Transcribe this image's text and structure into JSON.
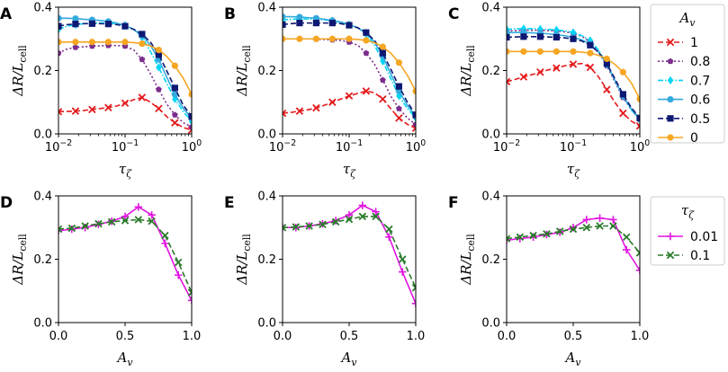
{
  "figure": {
    "panels_row1": [
      "A",
      "B",
      "C"
    ],
    "panels_row2": [
      "D",
      "E",
      "F"
    ]
  },
  "legend_top": {
    "title": "A_v",
    "entries": [
      {
        "label": "1",
        "color": "#e41a1c",
        "marker": "x",
        "dash": "dash"
      },
      {
        "label": "0.8",
        "color": "#7b2d8e",
        "marker": "pentagon",
        "dash": "dot"
      },
      {
        "label": "0.7",
        "color": "#00d5f5",
        "marker": "diamond",
        "dash": "dashdot"
      },
      {
        "label": "0.6",
        "color": "#33aadd",
        "marker": "circle",
        "dash": "solid"
      },
      {
        "label": "0.5",
        "color": "#0d1873",
        "marker": "square",
        "dash": "dash"
      },
      {
        "label": "0",
        "color": "#f5a623",
        "marker": "circle",
        "dash": "solid"
      }
    ]
  },
  "legend_bottom": {
    "title": "τ_ζ",
    "entries": [
      {
        "label": "0.01",
        "color": "#e016e0",
        "marker": "plus",
        "dash": "solid"
      },
      {
        "label": "0.1",
        "color": "#2a7a2a",
        "marker": "x",
        "dash": "dash"
      }
    ]
  },
  "chart_data": [
    {
      "panel": "A",
      "type": "line",
      "xscale": "log",
      "xlim": [
        0.01,
        1
      ],
      "ylim": [
        0,
        0.4
      ],
      "xlabel": "τ_ζ",
      "ylabel": "ΔR/L_cell",
      "xticks": [
        "10^-2",
        "10^-1",
        "10^0"
      ],
      "yticks": [
        "0.0",
        "0.2",
        "0.4"
      ],
      "series": [
        {
          "name": "1",
          "x": [
            0.01,
            0.0135,
            0.018,
            0.024,
            0.032,
            0.042,
            0.056,
            0.075,
            0.1,
            0.135,
            0.18,
            0.24,
            0.32,
            0.42,
            0.56,
            0.75,
            1.0
          ],
          "values": [
            0.07,
            0.071,
            0.072,
            0.074,
            0.077,
            0.08,
            0.083,
            0.088,
            0.097,
            0.108,
            0.115,
            0.1,
            0.08,
            0.055,
            0.035,
            0.02,
            0.012
          ]
        },
        {
          "name": "0.8",
          "x": [
            0.01,
            0.0135,
            0.018,
            0.024,
            0.032,
            0.042,
            0.056,
            0.075,
            0.1,
            0.135,
            0.18,
            0.24,
            0.32,
            0.42,
            0.56,
            0.75,
            1.0
          ],
          "values": [
            0.255,
            0.268,
            0.273,
            0.275,
            0.277,
            0.278,
            0.279,
            0.279,
            0.277,
            0.265,
            0.235,
            0.19,
            0.14,
            0.095,
            0.06,
            0.035,
            0.022
          ]
        },
        {
          "name": "0.7",
          "x": [
            0.01,
            0.0135,
            0.018,
            0.024,
            0.032,
            0.042,
            0.056,
            0.075,
            0.1,
            0.135,
            0.18,
            0.24,
            0.32,
            0.42,
            0.56,
            0.75,
            1.0
          ],
          "values": [
            0.33,
            0.34,
            0.345,
            0.348,
            0.35,
            0.35,
            0.35,
            0.348,
            0.343,
            0.33,
            0.305,
            0.26,
            0.21,
            0.16,
            0.11,
            0.07,
            0.04
          ]
        },
        {
          "name": "0.6",
          "x": [
            0.01,
            0.0135,
            0.018,
            0.024,
            0.032,
            0.042,
            0.056,
            0.075,
            0.1,
            0.135,
            0.18,
            0.24,
            0.32,
            0.42,
            0.56,
            0.75,
            1.0
          ],
          "values": [
            0.365,
            0.365,
            0.364,
            0.362,
            0.36,
            0.358,
            0.355,
            0.35,
            0.342,
            0.33,
            0.31,
            0.28,
            0.235,
            0.18,
            0.125,
            0.08,
            0.05
          ]
        },
        {
          "name": "0.5",
          "x": [
            0.01,
            0.0135,
            0.018,
            0.024,
            0.032,
            0.042,
            0.056,
            0.075,
            0.1,
            0.135,
            0.18,
            0.24,
            0.32,
            0.42,
            0.56,
            0.75,
            1.0
          ],
          "values": [
            0.34,
            0.345,
            0.347,
            0.348,
            0.348,
            0.348,
            0.347,
            0.345,
            0.34,
            0.33,
            0.315,
            0.29,
            0.25,
            0.2,
            0.145,
            0.09,
            0.055
          ]
        },
        {
          "name": "0",
          "x": [
            0.01,
            0.0135,
            0.018,
            0.024,
            0.032,
            0.042,
            0.056,
            0.075,
            0.1,
            0.135,
            0.18,
            0.24,
            0.32,
            0.42,
            0.56,
            0.75,
            1.0
          ],
          "values": [
            0.29,
            0.29,
            0.29,
            0.29,
            0.29,
            0.29,
            0.29,
            0.29,
            0.29,
            0.288,
            0.285,
            0.278,
            0.265,
            0.245,
            0.215,
            0.175,
            0.125
          ]
        }
      ]
    },
    {
      "panel": "B",
      "type": "line",
      "xscale": "log",
      "xlim": [
        0.01,
        1
      ],
      "ylim": [
        0,
        0.4
      ],
      "xlabel": "τ_ζ",
      "ylabel": "ΔR/L_cell",
      "xticks": [
        "10^-2",
        "10^-1",
        "10^0"
      ],
      "yticks": [
        "0.0",
        "0.2",
        "0.4"
      ],
      "series": [
        {
          "name": "1",
          "x": [
            0.01,
            0.0135,
            0.018,
            0.024,
            0.032,
            0.042,
            0.056,
            0.075,
            0.1,
            0.135,
            0.18,
            0.24,
            0.32,
            0.42,
            0.56,
            0.75,
            1.0
          ],
          "values": [
            0.065,
            0.068,
            0.072,
            0.076,
            0.082,
            0.09,
            0.1,
            0.11,
            0.12,
            0.128,
            0.135,
            0.13,
            0.11,
            0.08,
            0.05,
            0.03,
            0.018
          ]
        },
        {
          "name": "0.8",
          "x": [
            0.01,
            0.0135,
            0.018,
            0.024,
            0.032,
            0.042,
            0.056,
            0.075,
            0.1,
            0.135,
            0.18,
            0.24,
            0.32,
            0.42,
            0.56,
            0.75,
            1.0
          ],
          "values": [
            0.3,
            0.3,
            0.3,
            0.3,
            0.299,
            0.298,
            0.297,
            0.295,
            0.29,
            0.28,
            0.255,
            0.22,
            0.17,
            0.12,
            0.08,
            0.05,
            0.03
          ]
        },
        {
          "name": "0.7",
          "x": [
            0.01,
            0.0135,
            0.018,
            0.024,
            0.032,
            0.042,
            0.056,
            0.075,
            0.1,
            0.135,
            0.18,
            0.24,
            0.32,
            0.42,
            0.56,
            0.75,
            1.0
          ],
          "values": [
            0.36,
            0.362,
            0.363,
            0.363,
            0.362,
            0.36,
            0.357,
            0.352,
            0.345,
            0.335,
            0.315,
            0.28,
            0.23,
            0.175,
            0.12,
            0.08,
            0.05
          ]
        },
        {
          "name": "0.6",
          "x": [
            0.01,
            0.0135,
            0.018,
            0.024,
            0.032,
            0.042,
            0.056,
            0.075,
            0.1,
            0.135,
            0.18,
            0.24,
            0.32,
            0.42,
            0.56,
            0.75,
            1.0
          ],
          "values": [
            0.37,
            0.37,
            0.369,
            0.367,
            0.365,
            0.362,
            0.358,
            0.353,
            0.345,
            0.335,
            0.318,
            0.29,
            0.245,
            0.19,
            0.135,
            0.09,
            0.055
          ]
        },
        {
          "name": "0.5",
          "x": [
            0.01,
            0.0135,
            0.018,
            0.024,
            0.032,
            0.042,
            0.056,
            0.075,
            0.1,
            0.135,
            0.18,
            0.24,
            0.32,
            0.42,
            0.56,
            0.75,
            1.0
          ],
          "values": [
            0.345,
            0.348,
            0.35,
            0.35,
            0.35,
            0.35,
            0.35,
            0.348,
            0.343,
            0.335,
            0.32,
            0.295,
            0.255,
            0.205,
            0.15,
            0.1,
            0.06
          ]
        },
        {
          "name": "0",
          "x": [
            0.01,
            0.0135,
            0.018,
            0.024,
            0.032,
            0.042,
            0.056,
            0.075,
            0.1,
            0.135,
            0.18,
            0.24,
            0.32,
            0.42,
            0.56,
            0.75,
            1.0
          ],
          "values": [
            0.3,
            0.3,
            0.3,
            0.3,
            0.3,
            0.3,
            0.3,
            0.3,
            0.3,
            0.298,
            0.295,
            0.288,
            0.275,
            0.255,
            0.225,
            0.185,
            0.135
          ]
        }
      ]
    },
    {
      "panel": "C",
      "type": "line",
      "xscale": "log",
      "xlim": [
        0.01,
        1
      ],
      "ylim": [
        0,
        0.4
      ],
      "xlabel": "τ_ζ",
      "ylabel": "ΔR/L_cell",
      "xticks": [
        "10^-2",
        "10^-1",
        "10^0"
      ],
      "yticks": [
        "0.0",
        "0.2",
        "0.4"
      ],
      "series": [
        {
          "name": "1",
          "x": [
            0.01,
            0.0135,
            0.018,
            0.024,
            0.032,
            0.042,
            0.056,
            0.075,
            0.1,
            0.135,
            0.18,
            0.24,
            0.32,
            0.42,
            0.56,
            0.75,
            1.0
          ],
          "values": [
            0.165,
            0.172,
            0.18,
            0.187,
            0.195,
            0.202,
            0.208,
            0.215,
            0.22,
            0.222,
            0.21,
            0.18,
            0.14,
            0.1,
            0.065,
            0.04,
            0.025
          ]
        },
        {
          "name": "0.8",
          "x": [
            0.01,
            0.0135,
            0.018,
            0.024,
            0.032,
            0.042,
            0.056,
            0.075,
            0.1,
            0.135,
            0.18,
            0.24,
            0.32,
            0.42,
            0.56,
            0.75,
            1.0
          ],
          "values": [
            0.325,
            0.326,
            0.327,
            0.327,
            0.327,
            0.326,
            0.325,
            0.322,
            0.318,
            0.308,
            0.29,
            0.26,
            0.215,
            0.165,
            0.115,
            0.075,
            0.045
          ]
        },
        {
          "name": "0.7",
          "x": [
            0.01,
            0.0135,
            0.018,
            0.024,
            0.032,
            0.042,
            0.056,
            0.075,
            0.1,
            0.135,
            0.18,
            0.24,
            0.32,
            0.42,
            0.56,
            0.75,
            1.0
          ],
          "values": [
            0.33,
            0.332,
            0.332,
            0.332,
            0.331,
            0.33,
            0.328,
            0.325,
            0.32,
            0.31,
            0.295,
            0.265,
            0.22,
            0.17,
            0.12,
            0.075,
            0.045
          ]
        },
        {
          "name": "0.6",
          "x": [
            0.01,
            0.0135,
            0.018,
            0.024,
            0.032,
            0.042,
            0.056,
            0.075,
            0.1,
            0.135,
            0.18,
            0.24,
            0.32,
            0.42,
            0.56,
            0.75,
            1.0
          ],
          "values": [
            0.32,
            0.32,
            0.32,
            0.319,
            0.318,
            0.316,
            0.313,
            0.31,
            0.305,
            0.297,
            0.283,
            0.258,
            0.22,
            0.17,
            0.12,
            0.078,
            0.048
          ]
        },
        {
          "name": "0.5",
          "x": [
            0.01,
            0.0135,
            0.018,
            0.024,
            0.032,
            0.042,
            0.056,
            0.075,
            0.1,
            0.135,
            0.18,
            0.24,
            0.32,
            0.42,
            0.56,
            0.75,
            1.0
          ],
          "values": [
            0.305,
            0.306,
            0.307,
            0.307,
            0.307,
            0.306,
            0.305,
            0.303,
            0.3,
            0.293,
            0.28,
            0.258,
            0.222,
            0.175,
            0.125,
            0.082,
            0.05
          ]
        },
        {
          "name": "0",
          "x": [
            0.01,
            0.0135,
            0.018,
            0.024,
            0.032,
            0.042,
            0.056,
            0.075,
            0.1,
            0.135,
            0.18,
            0.24,
            0.32,
            0.42,
            0.56,
            0.75,
            1.0
          ],
          "values": [
            0.26,
            0.26,
            0.26,
            0.26,
            0.26,
            0.26,
            0.26,
            0.26,
            0.26,
            0.258,
            0.255,
            0.248,
            0.237,
            0.22,
            0.195,
            0.16,
            0.11
          ]
        }
      ]
    },
    {
      "panel": "D",
      "type": "line",
      "xscale": "linear",
      "xlim": [
        0,
        1
      ],
      "ylim": [
        0,
        0.4
      ],
      "xlabel": "A_v",
      "ylabel": "ΔR/L_cell",
      "xticks": [
        "0.0",
        "0.5",
        "1.0"
      ],
      "yticks": [
        "0.0",
        "0.2",
        "0.4"
      ],
      "series": [
        {
          "name": "0.01",
          "x": [
            0,
            0.1,
            0.2,
            0.3,
            0.4,
            0.5,
            0.6,
            0.7,
            0.8,
            0.9,
            1.0
          ],
          "values": [
            0.29,
            0.295,
            0.3,
            0.31,
            0.32,
            0.335,
            0.365,
            0.34,
            0.25,
            0.15,
            0.07
          ]
        },
        {
          "name": "0.1",
          "x": [
            0,
            0.1,
            0.2,
            0.3,
            0.4,
            0.5,
            0.6,
            0.7,
            0.8,
            0.9,
            1.0
          ],
          "values": [
            0.295,
            0.298,
            0.305,
            0.312,
            0.318,
            0.322,
            0.325,
            0.32,
            0.275,
            0.19,
            0.095
          ]
        }
      ]
    },
    {
      "panel": "E",
      "type": "line",
      "xscale": "linear",
      "xlim": [
        0,
        1
      ],
      "ylim": [
        0,
        0.4
      ],
      "xlabel": "A_v",
      "ylabel": "ΔR/L_cell",
      "xticks": [
        "0.0",
        "0.5",
        "1.0"
      ],
      "yticks": [
        "0.0",
        "0.2",
        "0.4"
      ],
      "series": [
        {
          "name": "0.01",
          "x": [
            0,
            0.1,
            0.2,
            0.3,
            0.4,
            0.5,
            0.6,
            0.7,
            0.8,
            0.9,
            1.0
          ],
          "values": [
            0.3,
            0.3,
            0.305,
            0.312,
            0.322,
            0.34,
            0.37,
            0.35,
            0.27,
            0.16,
            0.06
          ]
        },
        {
          "name": "0.1",
          "x": [
            0,
            0.1,
            0.2,
            0.3,
            0.4,
            0.5,
            0.6,
            0.7,
            0.8,
            0.9,
            1.0
          ],
          "values": [
            0.3,
            0.302,
            0.305,
            0.31,
            0.318,
            0.326,
            0.335,
            0.335,
            0.295,
            0.2,
            0.11
          ]
        }
      ]
    },
    {
      "panel": "F",
      "type": "line",
      "xscale": "linear",
      "xlim": [
        0,
        1
      ],
      "ylim": [
        0,
        0.4
      ],
      "xlabel": "A_v",
      "ylabel": "ΔR/L_cell",
      "xticks": [
        "0.0",
        "0.5",
        "1.0"
      ],
      "yticks": [
        "0.0",
        "0.2",
        "0.4"
      ],
      "series": [
        {
          "name": "0.01",
          "x": [
            0,
            0.1,
            0.2,
            0.3,
            0.4,
            0.5,
            0.6,
            0.7,
            0.8,
            0.9,
            1.0
          ],
          "values": [
            0.26,
            0.265,
            0.27,
            0.278,
            0.285,
            0.3,
            0.325,
            0.33,
            0.325,
            0.23,
            0.165
          ]
        },
        {
          "name": "0.1",
          "x": [
            0,
            0.1,
            0.2,
            0.3,
            0.4,
            0.5,
            0.6,
            0.7,
            0.8,
            0.9,
            1.0
          ],
          "values": [
            0.265,
            0.27,
            0.275,
            0.28,
            0.288,
            0.295,
            0.3,
            0.305,
            0.305,
            0.27,
            0.22
          ]
        }
      ]
    }
  ]
}
